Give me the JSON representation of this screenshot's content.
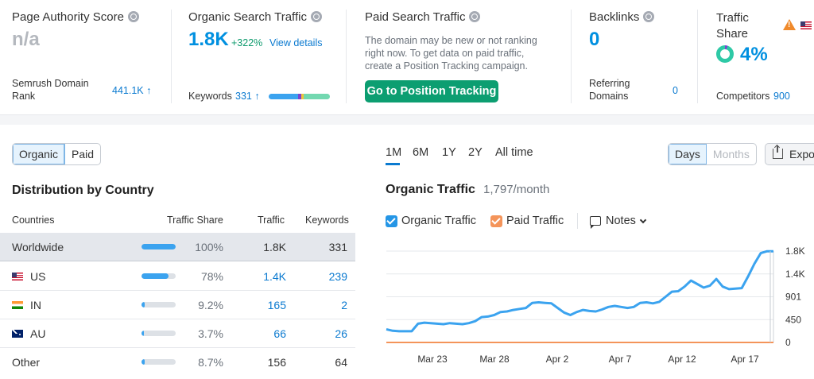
{
  "metrics": {
    "authority": {
      "title": "Page Authority Score",
      "value": "n/a",
      "rank_label": "Semrush Domain Rank",
      "rank_value": "441.1K ↑"
    },
    "organic": {
      "title": "Organic Search Traffic",
      "value": "1.8K",
      "change": "+322%",
      "link": "View details",
      "kw_label": "Keywords",
      "kw_value": "331 ↑"
    },
    "paid": {
      "title": "Paid Search Traffic",
      "message": "The domain may be new or not ranking right now. To get data on paid traffic, create a Position Tracking campaign.",
      "button": "Go to Position Tracking"
    },
    "backlinks": {
      "title": "Backlinks",
      "value": "0",
      "ref_label": "Referring Domains",
      "ref_value": "0"
    },
    "share": {
      "title": "Traffic Share",
      "value": "4%",
      "comp_label": "Competitors",
      "comp_value": "900"
    },
    "colors": {
      "accent": "#0090e0",
      "green": "#0c9e71",
      "warning": "#f08a2b"
    }
  },
  "distribution": {
    "tabs": [
      "Organic",
      "Paid"
    ],
    "active_tab": "Organic",
    "title": "Distribution by Country",
    "headers": {
      "country": "Countries",
      "share": "Traffic Share",
      "traffic": "Traffic",
      "keywords": "Keywords"
    },
    "rows": [
      {
        "country": "Worldwide",
        "flag": "",
        "share": "100%",
        "share_frac": 1.0,
        "traffic": "1.8K",
        "keywords": "331"
      },
      {
        "country": "US",
        "flag": "us-flag",
        "share": "78%",
        "share_frac": 0.78,
        "traffic": "1.4K",
        "keywords": "239"
      },
      {
        "country": "IN",
        "flag": "in-flag",
        "share": "9.2%",
        "share_frac": 0.092,
        "traffic": "165",
        "keywords": "2"
      },
      {
        "country": "AU",
        "flag": "au-flag",
        "share": "3.7%",
        "share_frac": 0.037,
        "traffic": "66",
        "keywords": "26"
      },
      {
        "country": "Other",
        "flag": "",
        "share": "8.7%",
        "share_frac": 0.087,
        "traffic": "156",
        "keywords": "64"
      }
    ]
  },
  "chart_panel": {
    "periods": [
      "1M",
      "6M",
      "1Y",
      "2Y",
      "All time"
    ],
    "active_period": "1M",
    "granularity": [
      "Days",
      "Months"
    ],
    "active_granularity": "Days",
    "export": "Export",
    "title": "Organic Traffic",
    "subtitle": "1,797/month",
    "legend": {
      "organic": "Organic Traffic",
      "paid": "Paid Traffic",
      "notes": "Notes"
    },
    "series_colors": {
      "organic": "#3ba3ef",
      "paid": "#f4945a"
    }
  },
  "chart_data": {
    "type": "line",
    "x_labels": [
      "Mar 23",
      "Mar 28",
      "Apr 2",
      "Apr 7",
      "Apr 12",
      "Apr 17"
    ],
    "y_ticks": [
      "1.8K",
      "1.4K",
      "901",
      "450",
      "0"
    ],
    "ylim": [
      0,
      1800
    ],
    "series": [
      {
        "name": "Organic Traffic",
        "values": [
          260,
          230,
          220,
          220,
          220,
          370,
          390,
          380,
          370,
          360,
          380,
          370,
          360,
          380,
          420,
          500,
          510,
          540,
          600,
          610,
          640,
          660,
          680,
          780,
          790,
          780,
          770,
          680,
          590,
          540,
          600,
          640,
          620,
          610,
          650,
          700,
          720,
          700,
          680,
          700,
          780,
          790,
          770,
          800,
          900,
          1000,
          1010,
          1100,
          1220,
          1150,
          1080,
          1120,
          1250,
          1100,
          1050,
          1060,
          1070,
          1300,
          1550,
          1760,
          1797,
          1797
        ]
      },
      {
        "name": "Paid Traffic",
        "values": [
          0,
          0,
          0,
          0,
          0,
          0,
          0,
          0,
          0,
          0,
          0,
          0,
          0,
          0,
          0,
          0,
          0,
          0,
          0,
          0,
          0,
          0,
          0,
          0,
          0,
          0,
          0,
          0,
          0,
          0,
          0,
          0,
          0,
          0,
          0,
          0,
          0,
          0,
          0,
          0,
          0,
          0,
          0,
          0,
          0,
          0,
          0,
          0,
          0,
          0,
          0,
          0,
          0,
          0,
          0,
          0,
          0,
          0,
          0,
          0,
          0,
          0
        ]
      }
    ],
    "grid": true
  }
}
